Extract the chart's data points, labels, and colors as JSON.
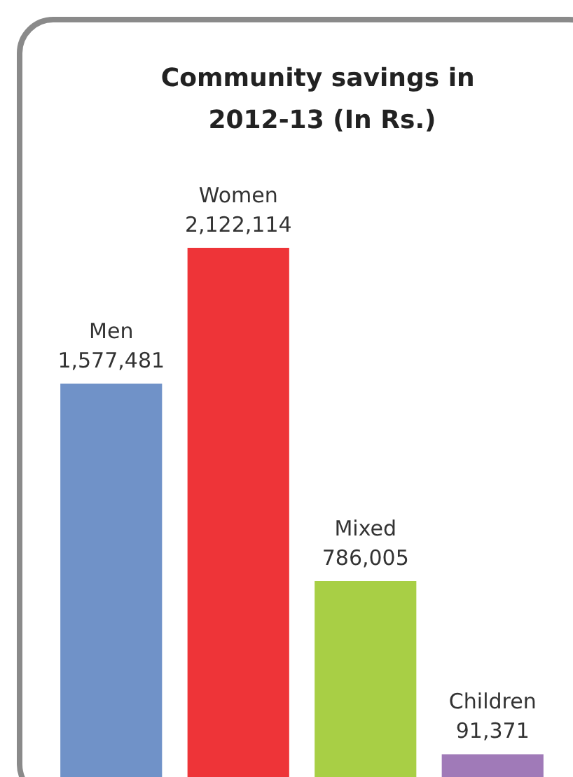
{
  "chart_data": {
    "type": "bar",
    "title": "Community savings in 2012-13 (In Rs.)",
    "categories": [
      "Men",
      "Women",
      "Mixed",
      "Children"
    ],
    "values": [
      1577481,
      2122114,
      786005,
      91371
    ],
    "colors": [
      "#7092c8",
      "#ee3438",
      "#a8cf45",
      "#a07ab8"
    ],
    "value_labels": [
      "1,577,481",
      "2,122,114",
      "786,005",
      "91,371"
    ]
  }
}
